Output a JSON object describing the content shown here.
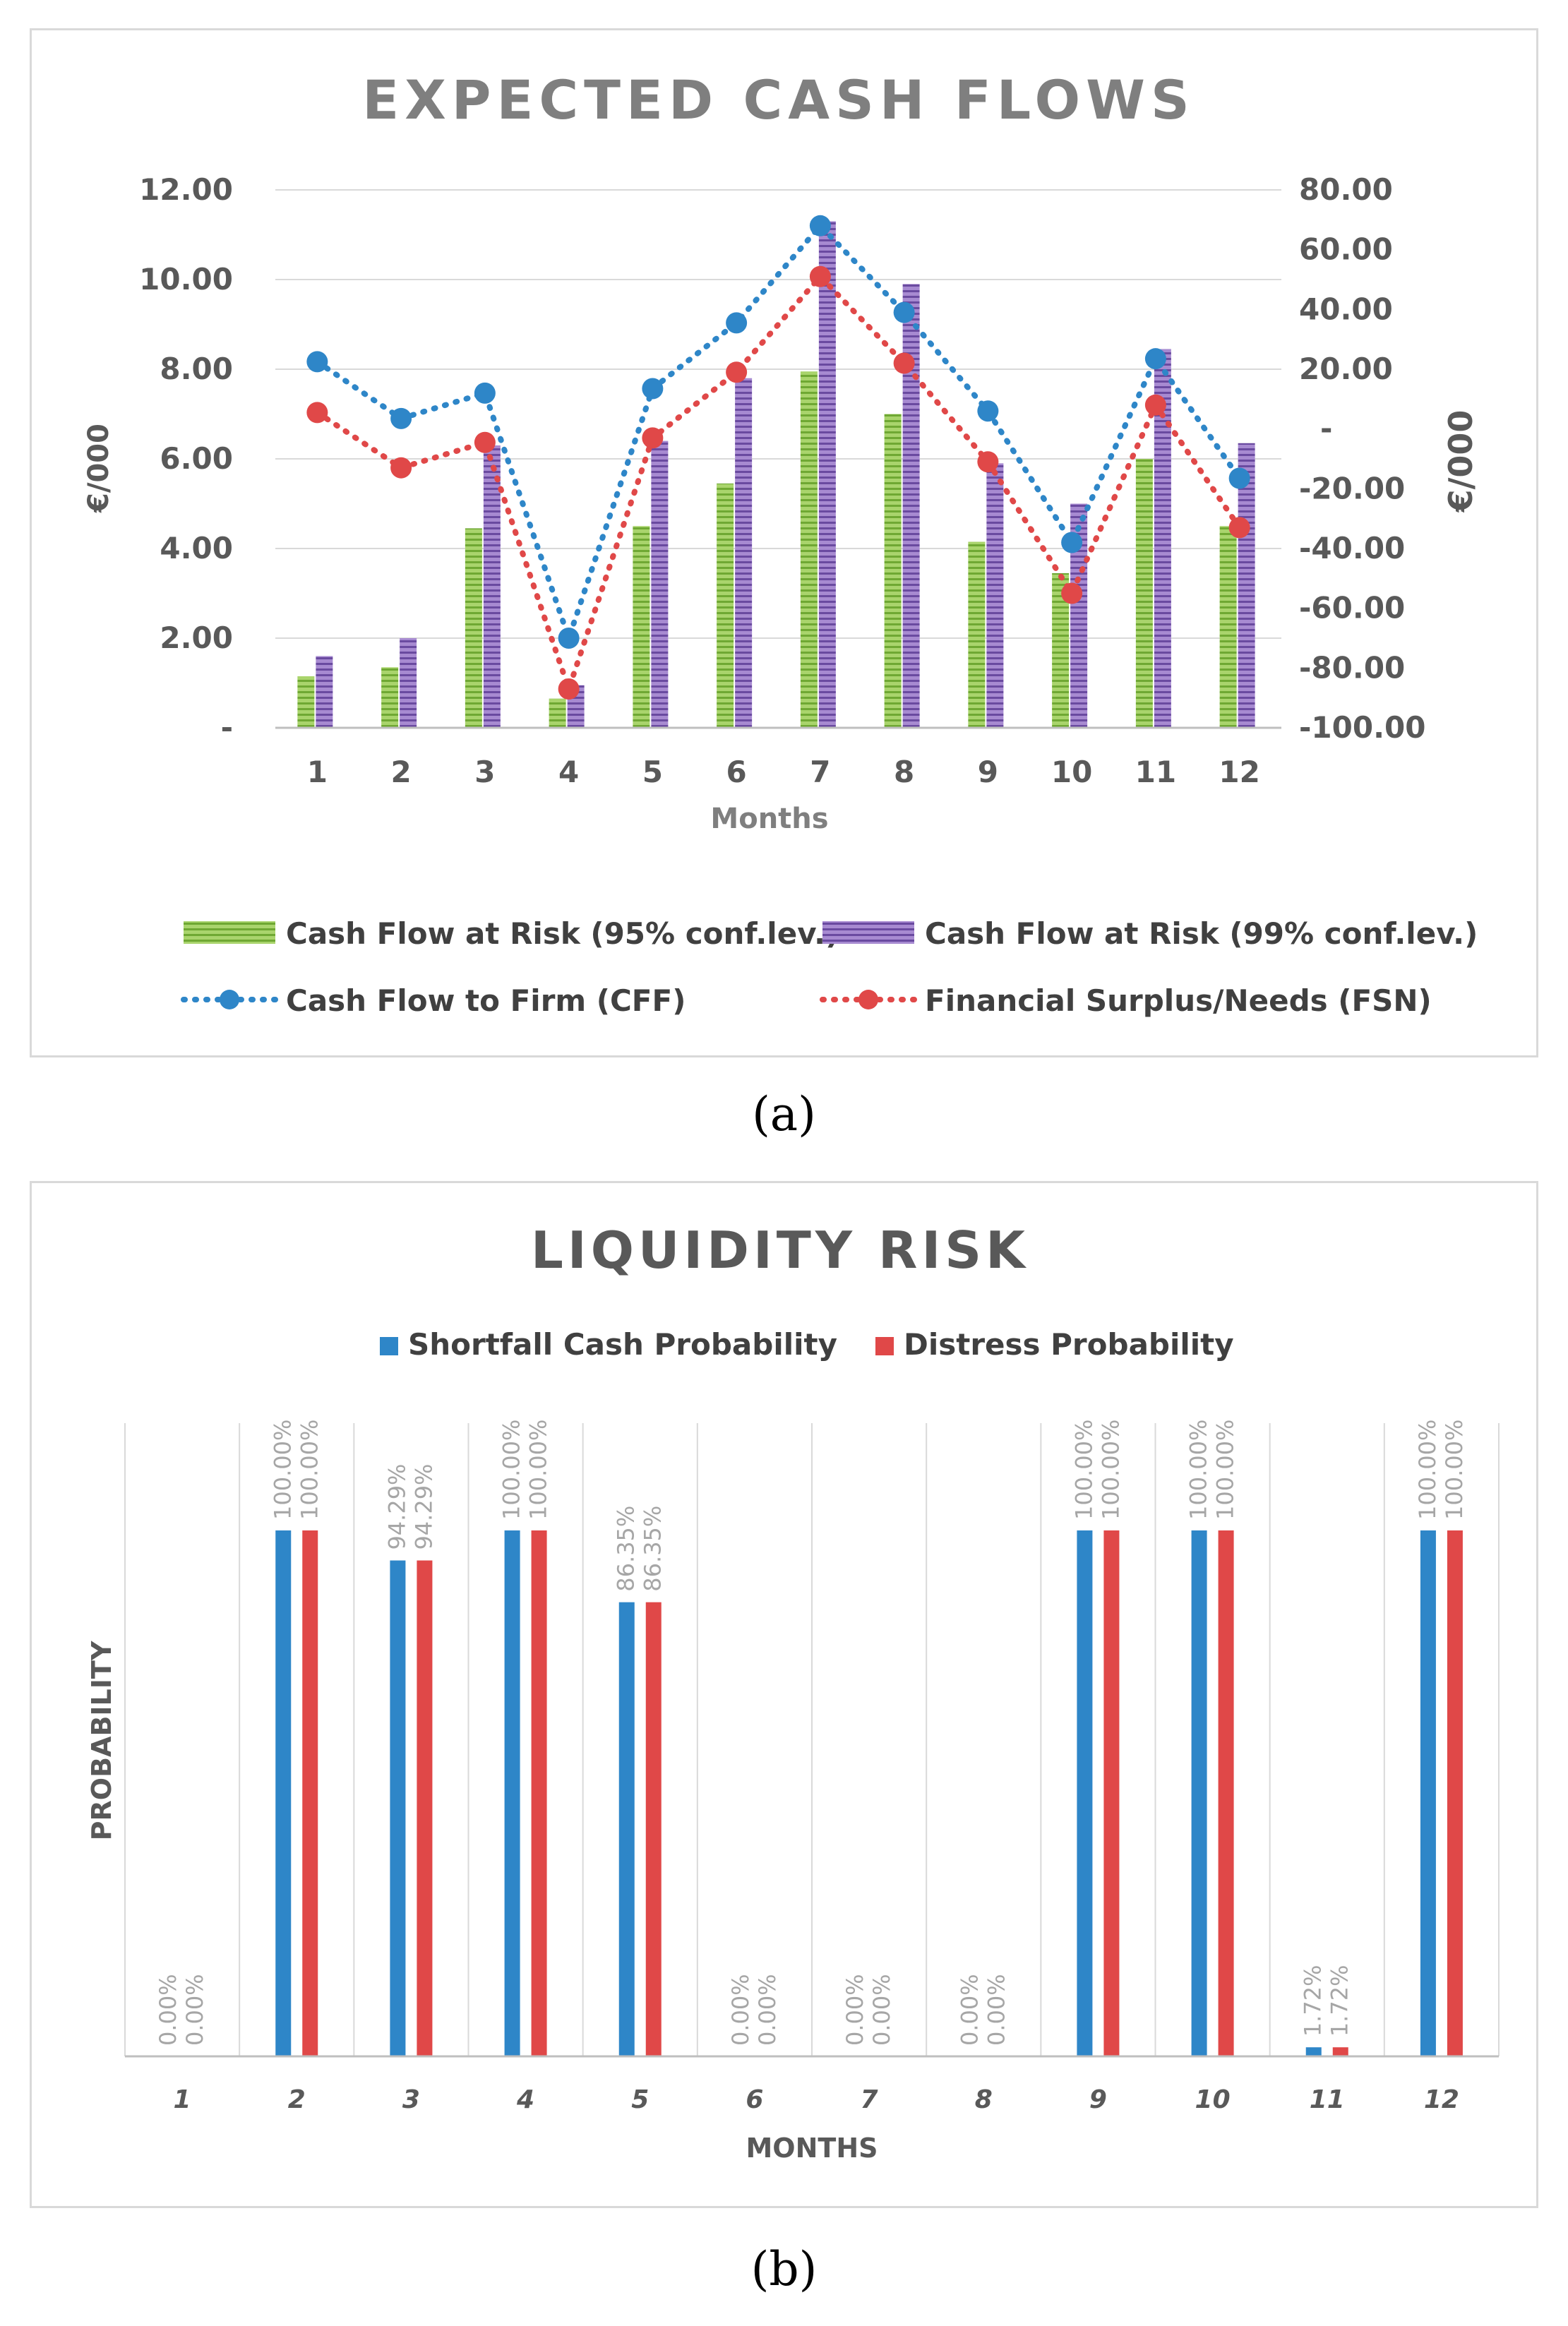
{
  "figure": {
    "caption_a": "(a)",
    "caption_b": "(b)"
  },
  "chart_data": [
    {
      "type": "bar",
      "title": "EXPECTED CASH FLOWS",
      "xlabel": "Months",
      "ylabel": "€/000",
      "ylabel_right": "€/000",
      "categories": [
        "1",
        "2",
        "3",
        "4",
        "5",
        "6",
        "7",
        "8",
        "9",
        "10",
        "11",
        "12"
      ],
      "ylim": [
        0,
        12
      ],
      "ylim_right": [
        -100,
        80
      ],
      "left_ticks": [
        "-",
        "2.00",
        "4.00",
        "6.00",
        "8.00",
        "10.00",
        "12.00"
      ],
      "right_ticks": [
        "-100.00",
        "-80.00",
        "-60.00",
        "-40.00",
        "-20.00",
        "-",
        "20.00",
        "40.00",
        "60.00",
        "80.00"
      ],
      "bar_series": [
        {
          "name": "Cash Flow at Risk (95% conf.lev.)",
          "axis": "left",
          "color": "#8fc44b",
          "values": [
            1.15,
            1.35,
            4.45,
            0.65,
            4.5,
            5.45,
            7.95,
            7.0,
            4.15,
            3.45,
            6.0,
            4.5
          ]
        },
        {
          "name": "Cash Flow at Risk (99% conf.lev.)",
          "axis": "left",
          "color": "#8e6bbf",
          "values": [
            1.6,
            2.0,
            6.3,
            0.95,
            6.4,
            7.8,
            11.3,
            9.9,
            5.9,
            5.0,
            8.45,
            6.35
          ]
        }
      ],
      "line_series": [
        {
          "name": "Cash Flow to Firm (CFF)",
          "axis": "right",
          "color": "#2e86c8",
          "values": [
            22.5,
            3.5,
            12.0,
            -70.0,
            13.5,
            35.5,
            68.0,
            39.0,
            6.0,
            -38.0,
            23.5,
            -16.5
          ]
        },
        {
          "name": "Financial Surplus/Needs (FSN)",
          "axis": "right",
          "color": "#e04848",
          "values": [
            5.5,
            -13.0,
            -4.5,
            -87.0,
            -3.0,
            19.0,
            51.0,
            22.0,
            -11.0,
            -55.0,
            8.0,
            -33.0
          ]
        }
      ],
      "legend": "bottom"
    },
    {
      "type": "bar",
      "title": "LIQUIDITY RISK",
      "xlabel": "MONTHS",
      "ylabel": "PROBABILITY",
      "categories": [
        "1",
        "2",
        "3",
        "4",
        "5",
        "6",
        "7",
        "8",
        "9",
        "10",
        "11",
        "12"
      ],
      "ylim": [
        0,
        100
      ],
      "series": [
        {
          "name": "Shortfall Cash Probability",
          "color": "#2e86c8",
          "values": [
            0,
            100,
            94.29,
            100,
            86.35,
            0,
            0,
            0,
            100,
            100,
            1.72,
            100
          ],
          "labels": [
            "0.00%",
            "100.00%",
            "94.29%",
            "100.00%",
            "86.35%",
            "0.00%",
            "0.00%",
            "0.00%",
            "100.00%",
            "100.00%",
            "1.72%",
            "100.00%"
          ]
        },
        {
          "name": "Distress Probability",
          "color": "#e04848",
          "values": [
            0,
            100,
            94.29,
            100,
            86.35,
            0,
            0,
            0,
            100,
            100,
            1.72,
            100
          ],
          "labels": [
            "0.00%",
            "100.00%",
            "94.29%",
            "100.00%",
            "86.35%",
            "0.00%",
            "0.00%",
            "0.00%",
            "100.00%",
            "100.00%",
            "1.72%",
            "100.00%"
          ]
        }
      ],
      "legend": "top"
    }
  ]
}
